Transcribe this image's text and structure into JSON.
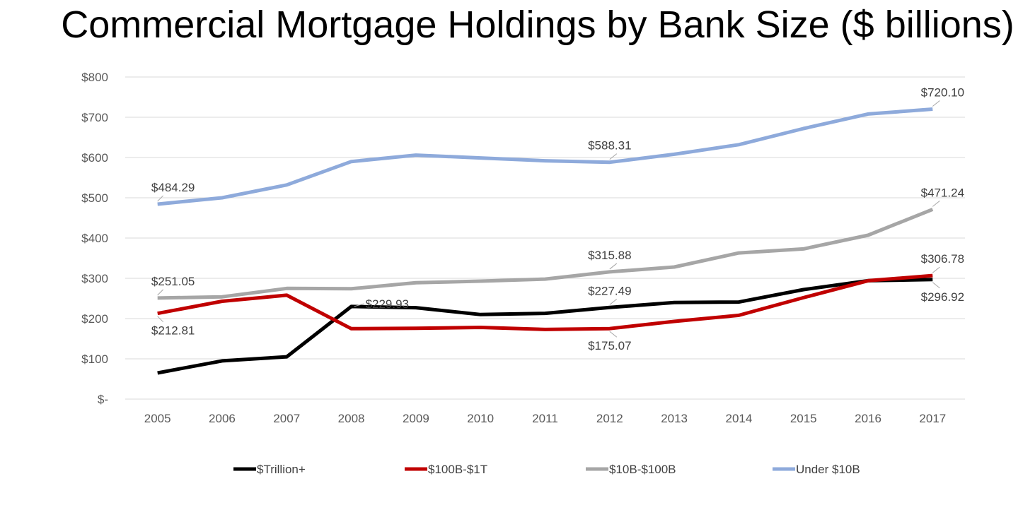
{
  "chart_data": {
    "type": "line",
    "title": "Commercial Mortgage Holdings by Bank Size ($ billions)",
    "xlabel": "",
    "ylabel": "",
    "categories": [
      "2005",
      "2006",
      "2007",
      "2008",
      "2009",
      "2010",
      "2011",
      "2012",
      "2013",
      "2014",
      "2015",
      "2016",
      "2017"
    ],
    "ylim": [
      0,
      800
    ],
    "yticks": [
      0,
      100,
      200,
      300,
      400,
      500,
      600,
      700,
      800
    ],
    "ytick_labels": [
      "$-",
      "$100",
      "$200",
      "$300",
      "$400",
      "$500",
      "$600",
      "$700",
      "$800"
    ],
    "grid": true,
    "legend_position": "bottom",
    "series": [
      {
        "name": "$Trillion+",
        "color": "#000000",
        "values": [
          65,
          95,
          105,
          229.93,
          227,
          210,
          213,
          227.49,
          240,
          241,
          272,
          294,
          296.92
        ],
        "labels": [
          {
            "index": 3,
            "text": "$229.93",
            "pos": "right-above"
          },
          {
            "index": 7,
            "text": "$227.49",
            "pos": "above"
          },
          {
            "index": 12,
            "text": "$296.92",
            "pos": "below"
          }
        ]
      },
      {
        "name": "$100B-$1T",
        "color": "#c00000",
        "values": [
          212.81,
          243,
          258,
          175,
          176,
          178,
          173,
          175.07,
          193,
          208,
          252,
          294,
          306.78
        ],
        "labels": [
          {
            "index": 0,
            "text": "$212.81",
            "pos": "below"
          },
          {
            "index": 7,
            "text": "$175.07",
            "pos": "below"
          },
          {
            "index": 12,
            "text": "$306.78",
            "pos": "above"
          }
        ]
      },
      {
        "name": "$10B-$100B",
        "color": "#a6a6a6",
        "values": [
          251.05,
          254,
          275,
          274,
          289,
          293,
          298,
          315.88,
          328,
          363,
          373,
          407,
          471.24
        ],
        "labels": [
          {
            "index": 0,
            "text": "$251.05",
            "pos": "above"
          },
          {
            "index": 7,
            "text": "$315.88",
            "pos": "above"
          },
          {
            "index": 12,
            "text": "$471.24",
            "pos": "above"
          }
        ]
      },
      {
        "name": "Under $10B",
        "color": "#8eaadb",
        "values": [
          484.29,
          500,
          532,
          590,
          606,
          599,
          592,
          588.31,
          608,
          632,
          672,
          708,
          720.1
        ],
        "labels": [
          {
            "index": 0,
            "text": "$484.29",
            "pos": "above"
          },
          {
            "index": 7,
            "text": "$588.31",
            "pos": "above"
          },
          {
            "index": 12,
            "text": "$720.10",
            "pos": "above"
          }
        ]
      }
    ]
  }
}
